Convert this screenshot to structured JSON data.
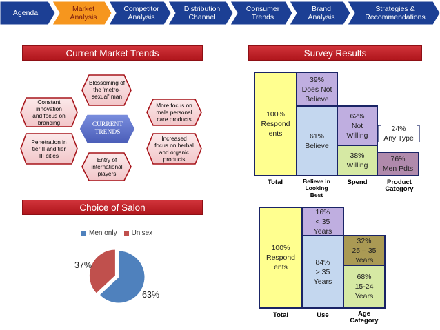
{
  "nav": {
    "items": [
      {
        "label": "Agenda",
        "active": false
      },
      {
        "label": "Market\nAnalysis",
        "active": true
      },
      {
        "label": "Competitor\nAnalysis",
        "active": false
      },
      {
        "label": "Distribution\nChannel",
        "active": false
      },
      {
        "label": "Consumer\nTrends",
        "active": false
      },
      {
        "label": "Brand\nAnalysis",
        "active": false
      },
      {
        "label": "Strategies &\nRecommendations",
        "active": false
      }
    ],
    "colors": {
      "inactive": "#1c3f94",
      "active": "#f6961e"
    }
  },
  "trends": {
    "title": "Current Market Trends",
    "center": "CURRENT\nTRENDS",
    "items": [
      "Constant\ninnovation\nand focus on\nbranding",
      "Blossoming of\nthe 'metro-\nsexual' man",
      "More focus on\nmale personal\ncare products",
      "Penetration in\ntier II and tier\nIII cities",
      "Entry of\ninternational\nplayers",
      "Increased\nfocus on herbal\nand organic\nproducts"
    ]
  },
  "survey": {
    "title": "Survey Results",
    "chart1": {
      "total": "100%\nRespond\nents",
      "believe_no": "39%\nDoes Not\nBelieve",
      "believe_yes": "61%\nBelieve",
      "spend_no": "62%\nNot\nWilling",
      "spend_yes": "38%\nWilling",
      "any_type": "24%\nAny Type",
      "men_pdts": "76%\nMen Pdts",
      "labels": [
        "Total",
        "Believe in\nLooking\nBest",
        "Spend",
        "Product\nCategory"
      ]
    },
    "chart2": {
      "total": "100%\nRespond\nents",
      "use_young": "16%\n< 35\nYears",
      "use_old": "84%\n> 35\nYears",
      "age_mid": "32%\n25 – 35\nYears",
      "age_young": "68%\n15-24\nYears",
      "labels": [
        "Total",
        "Use",
        "Age\nCategory"
      ]
    }
  },
  "salon": {
    "title": "Choice of Salon",
    "legend": [
      {
        "name": "Men only",
        "color": "#4f81bd"
      },
      {
        "name": "Unisex",
        "color": "#c0504d"
      }
    ],
    "slices": [
      {
        "name": "Men only",
        "value": 63,
        "label": "63%",
        "color": "#4f81bd"
      },
      {
        "name": "Unisex",
        "value": 37,
        "label": "37%",
        "color": "#c0504d"
      }
    ]
  }
}
